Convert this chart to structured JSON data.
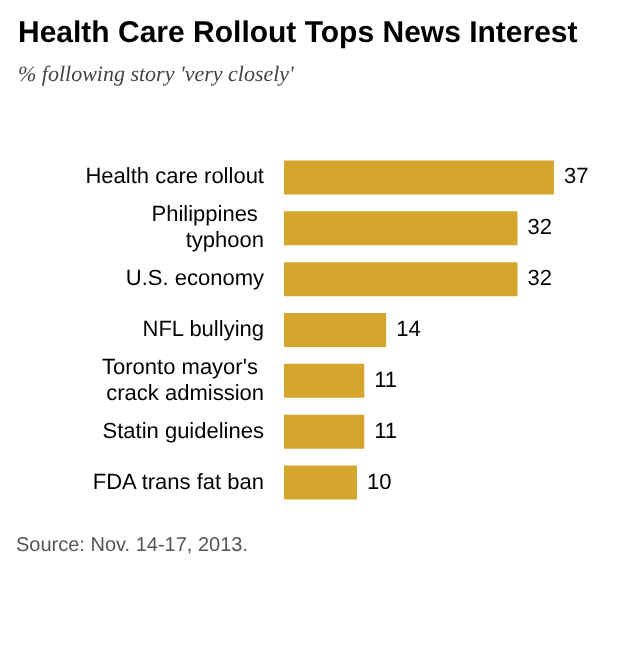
{
  "chart_data": {
    "type": "bar",
    "orientation": "horizontal",
    "title": "Health Care Rollout Tops News Interest",
    "subtitle": "% following story 'very closely'",
    "categories": [
      "Health care rollout",
      "Philippines typhoon",
      "U.S. economy",
      "NFL bullying",
      "Toronto mayor's crack admission",
      "Statin guidelines",
      "FDA trans fat ban"
    ],
    "values": [
      37,
      32,
      32,
      14,
      11,
      11,
      10
    ],
    "color": "#d4a72c",
    "data_labels": true,
    "annotations": [
      "Source: Nov. 14-17, 2013."
    ]
  }
}
